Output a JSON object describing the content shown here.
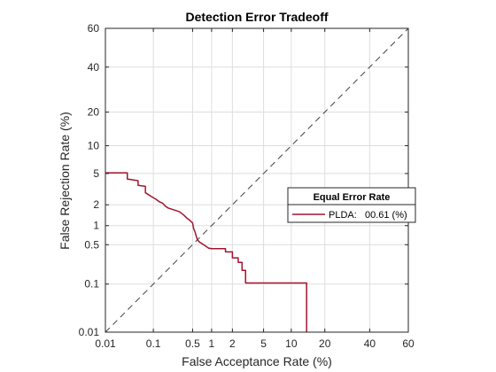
{
  "chart_data": {
    "type": "line",
    "title": "Detection Error Tradeoff",
    "xlabel": "False Acceptance Rate (%)",
    "ylabel": "False Rejection Rate (%)",
    "xscale": "probit",
    "yscale": "probit",
    "xlim": [
      0.01,
      60
    ],
    "ylim": [
      0.01,
      60
    ],
    "x_ticks": [
      0.01,
      0.1,
      0.5,
      1,
      2,
      5,
      10,
      20,
      40,
      60
    ],
    "x_tick_labels": [
      "0.01",
      "0.1",
      "0.5",
      "1",
      "2",
      "5",
      "10",
      "20",
      "40",
      "60"
    ],
    "y_ticks": [
      0.01,
      0.1,
      0.5,
      1,
      2,
      5,
      10,
      20,
      40,
      60
    ],
    "y_tick_labels": [
      "0.01",
      "0.1",
      "0.5",
      "1",
      "2",
      "5",
      "10",
      "20",
      "40",
      "60"
    ],
    "grid": true,
    "legend": {
      "title": "Equal Error Rate",
      "placement": "right",
      "entries": [
        {
          "series": "PLDA",
          "text": "PLDA:   00.61 (%)"
        }
      ]
    },
    "series": [
      {
        "name": "PLDA",
        "color": "#A2142F",
        "x": [
          0.01,
          0.03,
          0.03,
          0.05,
          0.05,
          0.07,
          0.07,
          0.09,
          0.11,
          0.13,
          0.15,
          0.17,
          0.19,
          0.24,
          0.3,
          0.35,
          0.4,
          0.45,
          0.5,
          0.52,
          0.55,
          0.57,
          0.6,
          0.65,
          0.75,
          0.9,
          1.0,
          1.6,
          1.6,
          2.0,
          2.0,
          2.4,
          2.4,
          2.7,
          2.7,
          3.0,
          3.0,
          14.0,
          14.0
        ],
        "y": [
          5.1,
          5.1,
          4.3,
          4.1,
          3.6,
          3.5,
          2.9,
          2.6,
          2.4,
          2.2,
          2.1,
          1.9,
          1.8,
          1.7,
          1.6,
          1.45,
          1.3,
          1.2,
          1.1,
          0.9,
          0.8,
          0.7,
          0.6,
          0.55,
          0.5,
          0.44,
          0.43,
          0.43,
          0.38,
          0.38,
          0.3,
          0.3,
          0.25,
          0.25,
          0.18,
          0.18,
          0.105,
          0.105,
          0.01
        ]
      },
      {
        "name": "",
        "style": "dashed",
        "color": "#404040",
        "x": [
          0.01,
          60
        ],
        "y": [
          0.01,
          60
        ]
      }
    ]
  }
}
